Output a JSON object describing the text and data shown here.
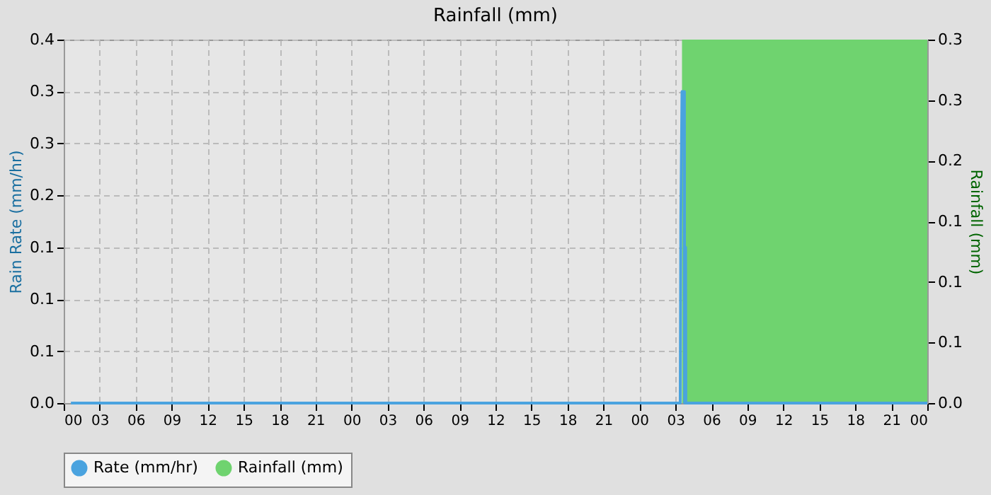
{
  "chart_data": {
    "type": "line",
    "title": "Rainfall (mm)",
    "ylabel": "Rain Rate (mm/hr)",
    "y2label": "Rainfall (mm)",
    "xlim": [
      0,
      72
    ],
    "xticks": [
      {
        "value": 0,
        "label": "00"
      },
      {
        "value": 3,
        "label": "03"
      },
      {
        "value": 6,
        "label": "06"
      },
      {
        "value": 9,
        "label": "09"
      },
      {
        "value": 12,
        "label": "12"
      },
      {
        "value": 15,
        "label": "15"
      },
      {
        "value": 18,
        "label": "18"
      },
      {
        "value": 21,
        "label": "21"
      },
      {
        "value": 24,
        "label": "00"
      },
      {
        "value": 27,
        "label": "03"
      },
      {
        "value": 30,
        "label": "06"
      },
      {
        "value": 33,
        "label": "09"
      },
      {
        "value": 36,
        "label": "12"
      },
      {
        "value": 39,
        "label": "15"
      },
      {
        "value": 42,
        "label": "18"
      },
      {
        "value": 45,
        "label": "21"
      },
      {
        "value": 48,
        "label": "00"
      },
      {
        "value": 51,
        "label": "03"
      },
      {
        "value": 54,
        "label": "06"
      },
      {
        "value": 57,
        "label": "09"
      },
      {
        "value": 60,
        "label": "12"
      },
      {
        "value": 63,
        "label": "15"
      },
      {
        "value": 66,
        "label": "18"
      },
      {
        "value": 69,
        "label": "21"
      },
      {
        "value": 72,
        "label": "00"
      }
    ],
    "ylim": [
      0,
      0.35
    ],
    "yticks": [
      {
        "value": 0,
        "label": "0.0"
      },
      {
        "value": 0.05,
        "label": "0.1"
      },
      {
        "value": 0.1,
        "label": "0.1"
      },
      {
        "value": 0.15,
        "label": "0.1"
      },
      {
        "value": 0.2,
        "label": "0.2"
      },
      {
        "value": 0.25,
        "label": "0.3"
      },
      {
        "value": 0.3,
        "label": "0.3"
      },
      {
        "value": 0.35,
        "label": "0.4"
      }
    ],
    "y2lim": [
      0,
      0.3
    ],
    "y2ticks": [
      {
        "value": 0,
        "label": "0.0"
      },
      {
        "value": 0.05,
        "label": "0.1"
      },
      {
        "value": 0.1,
        "label": "0.1"
      },
      {
        "value": 0.15,
        "label": "0.1"
      },
      {
        "value": 0.2,
        "label": "0.2"
      },
      {
        "value": 0.25,
        "label": "0.3"
      },
      {
        "value": 0.3,
        "label": "0.3"
      }
    ],
    "grid": true,
    "legend": "bottom",
    "line_style": "solid",
    "series": [
      {
        "name": "Rate (mm/hr)",
        "color": "#4aa3df",
        "x": [
          0.6,
          51.4,
          51.45,
          51.55,
          51.75,
          51.77,
          51.8,
          51.85,
          51.87,
          72
        ],
        "values": [
          0,
          0,
          0.175,
          0.3,
          0.3,
          0,
          0.15,
          0.15,
          0,
          0
        ]
      },
      {
        "name": "Rainfall (mm)",
        "type": "area",
        "axis": "y2",
        "color": "#6fd36f",
        "x": [
          0.6,
          51.55,
          72
        ],
        "values": [
          0,
          0.3,
          0.3
        ]
      }
    ]
  }
}
